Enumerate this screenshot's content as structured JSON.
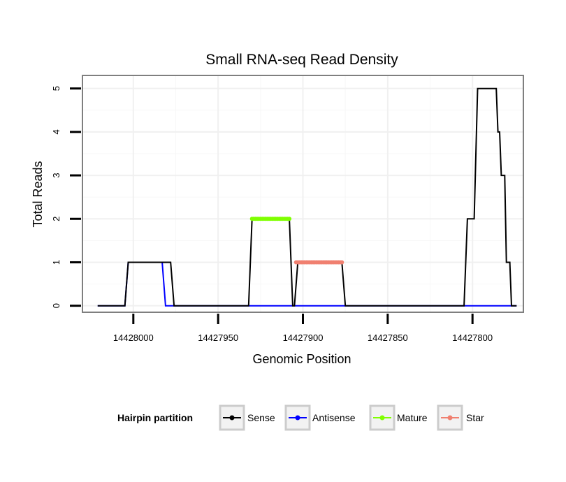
{
  "chart_data": {
    "type": "line",
    "title": "Small RNA-seq Read Density",
    "xlabel": "Genomic Position",
    "ylabel": "Total Reads",
    "x_reversed": true,
    "xlim": [
      14428030,
      14427770
    ],
    "ylim": [
      -0.15,
      5.3
    ],
    "x_ticks": [
      14428000,
      14427950,
      14427900,
      14427850,
      14427800
    ],
    "x_tick_labels": [
      "14428000",
      "14427950",
      "14427900",
      "14427850",
      "14427800"
    ],
    "y_ticks": [
      0,
      1,
      2,
      3,
      4,
      5
    ],
    "y_tick_labels": [
      "0",
      "1",
      "2",
      "3",
      "4",
      "5"
    ],
    "grid": true,
    "legend": {
      "title": "Hairpin partition",
      "position": "bottom",
      "entries": [
        "Sense",
        "Antisense",
        "Mature",
        "Star"
      ]
    },
    "series": [
      {
        "name": "Sense",
        "color": "#000000",
        "x": [
          14428021,
          14428005,
          14428003,
          14427984,
          14427978,
          14427976,
          14427932,
          14427930,
          14427908,
          14427906,
          14427905,
          14427903,
          14427877,
          14427875,
          14427805,
          14427803,
          14427799,
          14427797,
          14427786,
          14427785,
          14427784,
          14427783,
          14427781,
          14427780,
          14427778,
          14427777,
          14427776,
          14427774
        ],
        "values": [
          0,
          0,
          1,
          1,
          1,
          0,
          0,
          2,
          2,
          0,
          0,
          1,
          1,
          0,
          0,
          2,
          2,
          5,
          5,
          4,
          4,
          3,
          3,
          1,
          1,
          0,
          0,
          0
        ]
      },
      {
        "name": "Antisense",
        "color": "#0000ff",
        "x": [
          14428021,
          14428005,
          14428003,
          14427983,
          14427981,
          14427774
        ],
        "values": [
          0,
          0,
          1,
          1,
          0,
          0
        ]
      },
      {
        "name": "Mature",
        "color": "#7fff00",
        "x": [
          14427930,
          14427908
        ],
        "values": [
          2,
          2
        ]
      },
      {
        "name": "Star",
        "color": "#f08070",
        "x": [
          14427904,
          14427877
        ],
        "values": [
          1,
          1
        ]
      }
    ]
  }
}
